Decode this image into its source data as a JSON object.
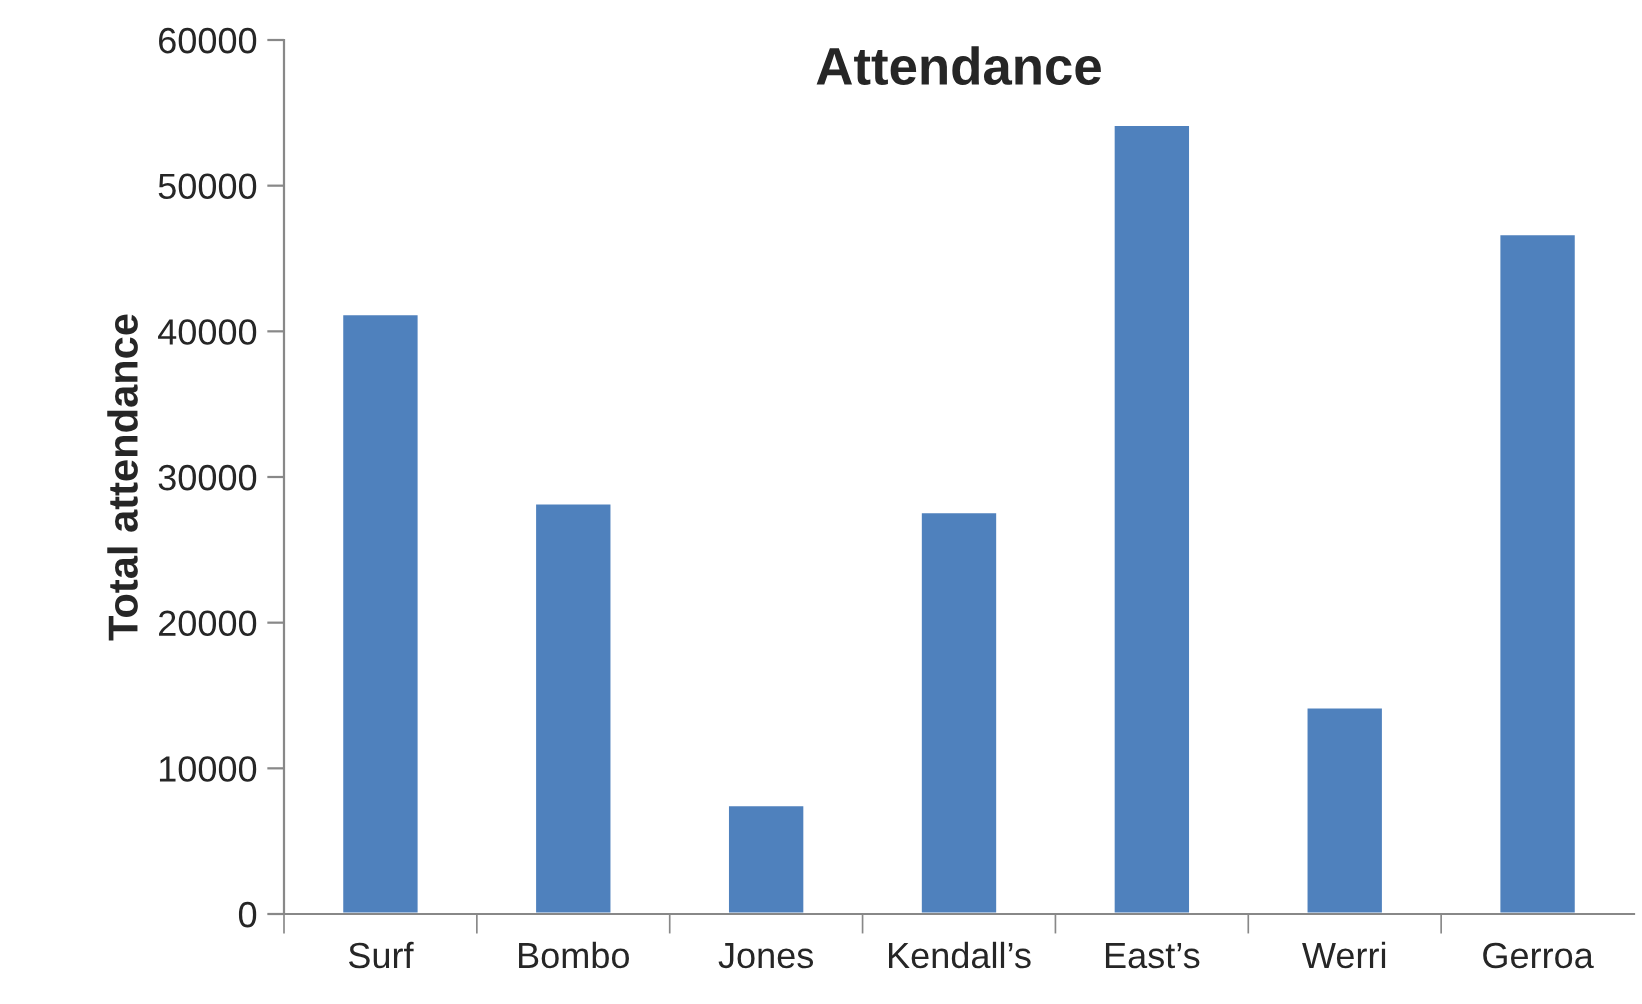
{
  "chart_data": {
    "type": "bar",
    "title": "Attendance",
    "ylabel": "Total attendance",
    "categories": [
      "Surf",
      "Bombo",
      "Jones",
      "Kendall’s",
      "East’s",
      "Werri",
      "Gerroa"
    ],
    "values": [
      41200,
      28200,
      7500,
      27600,
      54200,
      14200,
      46700
    ],
    "color": "#4f81bd",
    "ylim": [
      0,
      60000
    ],
    "yticks": [
      0,
      10000,
      20000,
      30000,
      40000,
      50000,
      60000
    ],
    "grid": false,
    "legend": false
  }
}
